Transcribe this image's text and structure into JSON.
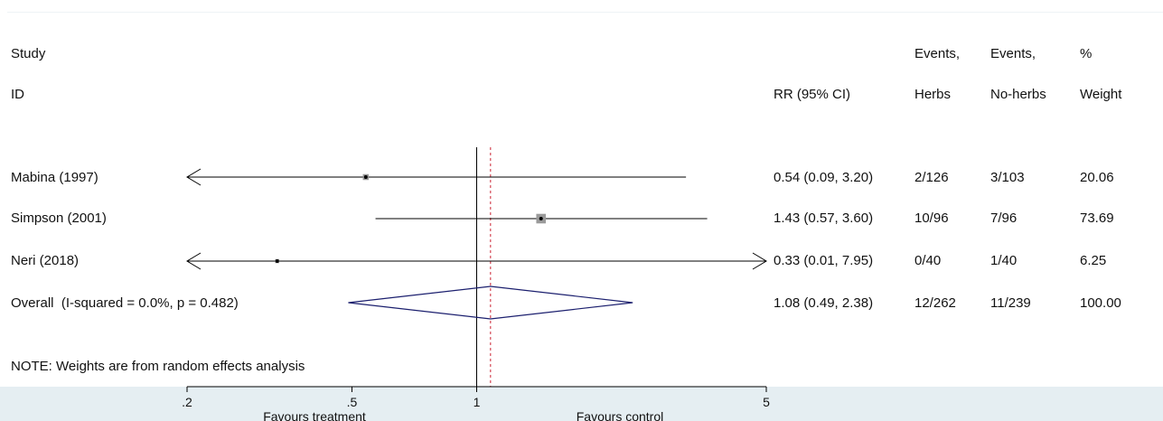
{
  "header": {
    "study_label": "Study",
    "id_label": "ID",
    "rr_label": "RR (95% CI)",
    "events_herbs_1": "Events,",
    "events_herbs_2": "Herbs",
    "events_noherbs_1": "Events,",
    "events_noherbs_2": "No-herbs",
    "weight_1": "%",
    "weight_2": "Weight"
  },
  "note": "NOTE: Weights are from random effects analysis",
  "axis": {
    "favours_left": "Favours treatment",
    "favours_right": "Favours control"
  },
  "colors": {
    "diamond": "#1b1f6e",
    "overall_line": "#cc2233",
    "square": "#9a9a9a",
    "axis_band": "#e5eef2"
  },
  "chart_data": {
    "type": "forest",
    "measure": "RR",
    "scale": "log",
    "null_value": 1,
    "xlim": [
      0.2,
      5
    ],
    "ticks": [
      {
        "value": 0.2,
        "label": ".2"
      },
      {
        "value": 0.5,
        "label": ".5"
      },
      {
        "value": 1,
        "label": "1"
      },
      {
        "value": 5,
        "label": "5"
      }
    ],
    "studies": [
      {
        "name": "Mabina (1997)",
        "rr": 0.54,
        "lo": 0.09,
        "hi": 3.2,
        "ci_text": "0.54 (0.09, 3.20)",
        "events_herbs": "2/126",
        "events_noherbs": "3/103",
        "weight": 20.06,
        "weight_text": "20.06"
      },
      {
        "name": "Simpson (2001)",
        "rr": 1.43,
        "lo": 0.57,
        "hi": 3.6,
        "ci_text": "1.43 (0.57, 3.60)",
        "events_herbs": "10/96",
        "events_noherbs": "7/96",
        "weight": 73.69,
        "weight_text": "73.69"
      },
      {
        "name": "Neri (2018)",
        "rr": 0.33,
        "lo": 0.01,
        "hi": 7.95,
        "ci_text": "0.33 (0.01, 7.95)",
        "events_herbs": "0/40",
        "events_noherbs": "1/40",
        "weight": 6.25,
        "weight_text": "6.25"
      }
    ],
    "overall": {
      "name": "Overall  (I-squared = 0.0%, p = 0.482)",
      "rr": 1.08,
      "lo": 0.49,
      "hi": 2.38,
      "ci_text": "1.08 (0.49, 2.38)",
      "events_herbs": "12/262",
      "events_noherbs": "11/239",
      "weight_text": "100.00"
    }
  }
}
